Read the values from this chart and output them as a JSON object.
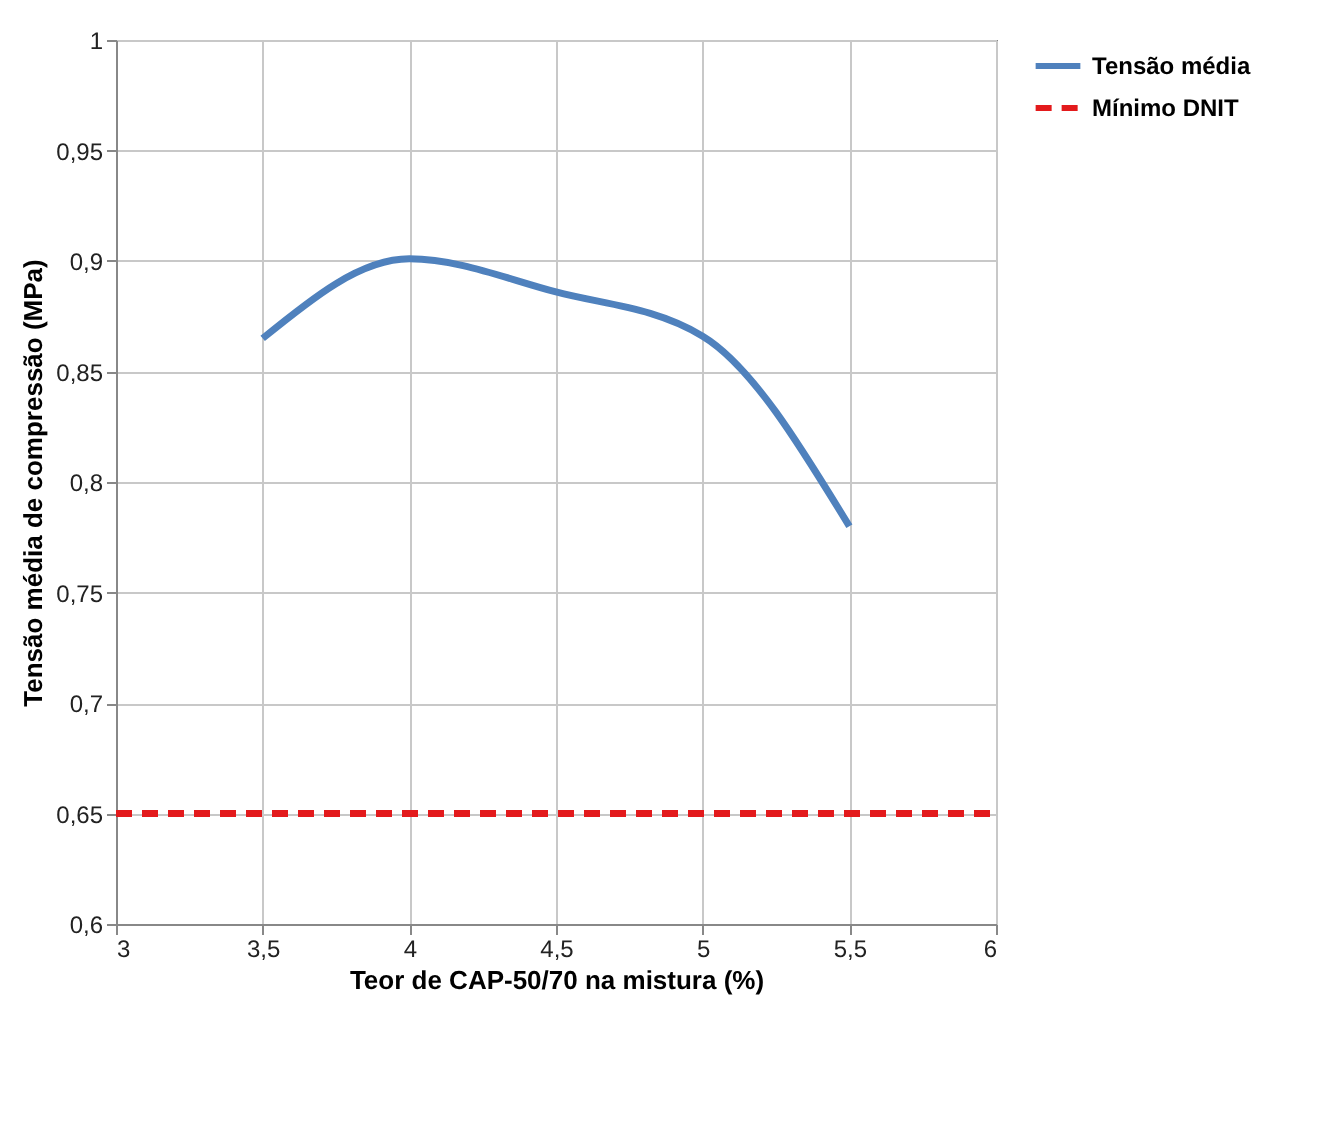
{
  "chart_data": {
    "type": "line",
    "xlabel": "Teor de CAP-50/70 na mistura (%)",
    "ylabel": "Tensão média de compressão (MPa)",
    "xlim": [
      3,
      6
    ],
    "ylim": [
      0.6,
      1
    ],
    "xticks": [
      3,
      {
        "value": 3.5,
        "label": "3,5"
      },
      4,
      {
        "value": 4.5,
        "label": "4,5"
      },
      5,
      {
        "value": 5.5,
        "label": "5,5"
      },
      6
    ],
    "yticks": [
      {
        "value": 0.6,
        "label": "0,6"
      },
      {
        "value": 0.65,
        "label": "0,65"
      },
      {
        "value": 0.7,
        "label": "0,7"
      },
      {
        "value": 0.75,
        "label": "0,75"
      },
      {
        "value": 0.8,
        "label": "0,8"
      },
      {
        "value": 0.85,
        "label": "0,85"
      },
      {
        "value": 0.9,
        "label": "0,9"
      },
      {
        "value": 0.95,
        "label": "0,95"
      },
      1
    ],
    "grid": true,
    "legend": "right",
    "marker": "none",
    "series": [
      {
        "name": "Tensão média",
        "color": "#4f81bd",
        "x": [
          3.5,
          4,
          4.5,
          5,
          5.5
        ],
        "values": [
          0.865,
          0.901,
          0.886,
          0.866,
          0.78
        ],
        "line_style": "solid"
      },
      {
        "name": "Mínimo DNIT",
        "color": "#e31a1c",
        "x": [
          3,
          6
        ],
        "values": [
          0.65,
          0.65
        ],
        "line_style": "dashed"
      }
    ]
  }
}
